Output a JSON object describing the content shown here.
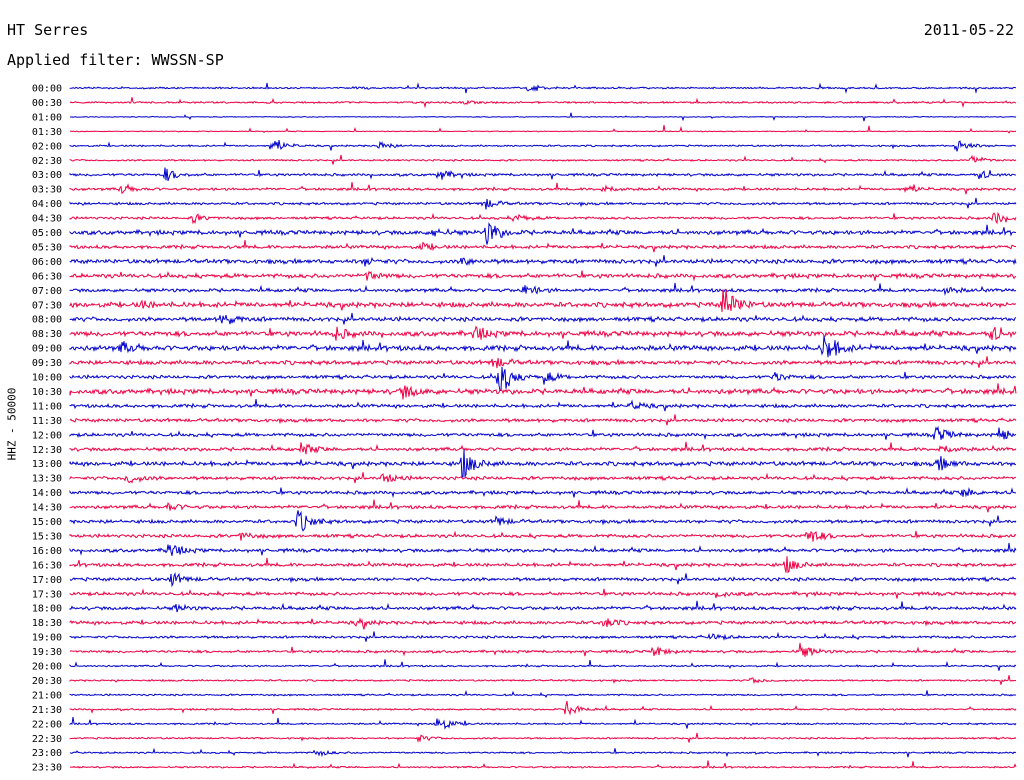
{
  "header": {
    "station": "HT Serres",
    "date": "2011-05-22",
    "filter": "Applied filter: WWSSN-SP"
  },
  "chart_data": {
    "type": "line",
    "title": "HT Serres",
    "subtitle": "Applied filter: WWSSN-SP",
    "ylabel": "HHZ - 50000",
    "xlim": [
      0,
      30
    ],
    "colors": [
      "#0000cc",
      "#ee0044"
    ],
    "rows": [
      "00:00",
      "00:30",
      "01:00",
      "01:30",
      "02:00",
      "02:30",
      "03:00",
      "03:30",
      "04:00",
      "04:30",
      "05:00",
      "05:30",
      "06:00",
      "06:30",
      "07:00",
      "07:30",
      "08:00",
      "08:30",
      "09:00",
      "09:30",
      "10:00",
      "10:30",
      "11:00",
      "11:30",
      "12:00",
      "12:30",
      "13:00",
      "13:30",
      "14:00",
      "14:30",
      "15:00",
      "15:30",
      "16:00",
      "16:30",
      "17:00",
      "17:30",
      "18:00",
      "18:30",
      "19:00",
      "19:30",
      "20:00",
      "20:30",
      "21:00",
      "21:30",
      "22:00",
      "22:30",
      "23:00",
      "23:30"
    ],
    "noise_level": [
      1,
      1,
      0.5,
      0.5,
      1,
      1,
      1.5,
      1.5,
      1.5,
      1.5,
      2.5,
      2,
      2.5,
      2.5,
      2,
      3,
      2.5,
      3,
      3,
      2.5,
      2,
      3,
      2,
      2,
      2,
      2,
      2.5,
      2,
      2,
      2,
      2,
      2,
      2,
      2,
      2,
      2,
      2,
      2,
      1.5,
      1.5,
      1,
      1,
      1,
      1,
      1,
      1,
      1,
      1
    ],
    "events": [
      [
        [
          14.5,
          5
        ],
        [
          9,
          1
        ]
      ],
      [
        [
          12.5,
          2
        ]
      ],
      [],
      [],
      [
        [
          6.4,
          8
        ],
        [
          9.8,
          4
        ],
        [
          28.1,
          8
        ]
      ],
      [
        [
          28.6,
          5
        ]
      ],
      [
        [
          3,
          7
        ],
        [
          11.7,
          6
        ],
        [
          28.8,
          5
        ]
      ],
      [
        [
          1.6,
          5
        ],
        [
          16.9,
          4
        ],
        [
          26.5,
          4
        ]
      ],
      [
        [
          13.1,
          7
        ]
      ],
      [
        [
          3.9,
          4
        ],
        [
          14.1,
          4
        ],
        [
          29.3,
          7
        ]
      ],
      [
        [
          13.2,
          14
        ],
        [
          11.5,
          4
        ]
      ],
      [
        [
          11.1,
          4
        ]
      ],
      [
        [
          9.3,
          4
        ],
        [
          12.4,
          4
        ]
      ],
      [
        [
          9.4,
          5
        ]
      ],
      [
        [
          14.4,
          7
        ],
        [
          27.7,
          4
        ]
      ],
      [
        [
          20.7,
          20
        ],
        [
          2.2,
          4
        ]
      ],
      [
        [
          4.8,
          7
        ]
      ],
      [
        [
          8.4,
          6
        ],
        [
          12.8,
          8
        ],
        [
          29.2,
          8
        ]
      ],
      [
        [
          23.9,
          18
        ],
        [
          1.6,
          6
        ]
      ],
      [
        [
          13.4,
          7
        ]
      ],
      [
        [
          13.6,
          22
        ],
        [
          15,
          7
        ],
        [
          22.3,
          5
        ]
      ],
      [
        [
          10.5,
          8
        ]
      ],
      [
        [
          17.8,
          4
        ]
      ],
      [],
      [
        [
          27.4,
          10
        ],
        [
          29.4,
          8
        ]
      ],
      [
        [
          7.3,
          7
        ],
        [
          27.6,
          5
        ]
      ],
      [
        [
          12.4,
          17
        ],
        [
          27.5,
          8
        ]
      ],
      [
        [
          1.8,
          6
        ],
        [
          9.9,
          6
        ]
      ],
      [
        [
          28.3,
          5
        ]
      ],
      [
        [
          3.1,
          4
        ]
      ],
      [
        [
          7.2,
          14
        ],
        [
          13.5,
          5
        ]
      ],
      [
        [
          23.4,
          9
        ],
        [
          5.4,
          4
        ]
      ],
      [
        [
          3.1,
          9
        ]
      ],
      [
        [
          22.7,
          8
        ]
      ],
      [
        [
          3.2,
          7
        ]
      ],
      [
        [
          20.5,
          4
        ]
      ],
      [
        [
          3.3,
          4
        ]
      ],
      [
        [
          16.9,
          6
        ],
        [
          9.1,
          4
        ]
      ],
      [
        [
          20.3,
          4
        ]
      ],
      [
        [
          18.5,
          6
        ],
        [
          23.1,
          10
        ]
      ],
      [],
      [
        [
          21.6,
          3
        ]
      ],
      [],
      [
        [
          15.7,
          10
        ]
      ],
      [
        [
          11.6,
          11
        ]
      ],
      [
        [
          11,
          4
        ]
      ],
      [
        [
          7.8,
          4
        ]
      ],
      []
    ]
  }
}
